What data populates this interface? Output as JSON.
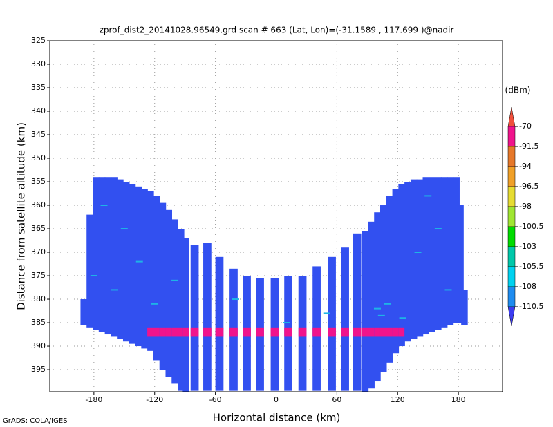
{
  "chart_data": {
    "type": "radar-profile",
    "title": "zprof_dist2_20141028.96549.grd  scan # 663  (Lat, Lon)=(-31.1589 , 117.699 )@nadir",
    "x_label": "Horizontal distance (km)",
    "y_label": "Distance from satellite altitude (km)",
    "credit": "GrADS: COLA/IGES",
    "xlim": [
      -223.6,
      223.6
    ],
    "xticks": [
      -180,
      -120,
      -60,
      0,
      60,
      120,
      180
    ],
    "ylim": [
      325,
      399.7
    ],
    "yticks": [
      325,
      330,
      335,
      340,
      345,
      350,
      355,
      360,
      365,
      370,
      375,
      380,
      385,
      390,
      395
    ],
    "y_inverted": true,
    "grid": true,
    "x": [
      -190,
      -184,
      -178,
      -172,
      -166,
      -160,
      -154,
      -148,
      -142,
      -136,
      -130,
      -124,
      -118,
      -112,
      -106,
      -100,
      -94,
      -89,
      -80.5,
      -68,
      -56,
      -42,
      -29,
      -16,
      -1.4,
      12,
      26,
      40,
      55,
      68,
      80,
      88,
      94,
      100,
      106,
      112,
      118,
      124,
      130,
      136,
      142,
      148,
      154,
      160,
      166,
      172,
      178,
      182,
      186
    ],
    "width": [
      6.5,
      6.5,
      6.5,
      6.5,
      6.5,
      6.5,
      6.5,
      6.5,
      6.5,
      6.5,
      6.5,
      6.5,
      6.5,
      6.5,
      6.5,
      6.5,
      6.5,
      6.5,
      8,
      8,
      8,
      8,
      8,
      8,
      8,
      8,
      8,
      8,
      8,
      8,
      8,
      6.5,
      6.5,
      6.5,
      6.5,
      6.5,
      6.5,
      6.5,
      6.5,
      6.5,
      6.5,
      6.5,
      6.5,
      6.5,
      6.5,
      6.5,
      6.5,
      6.5,
      6.5
    ],
    "top": [
      380,
      362,
      354,
      354,
      354,
      354,
      354.5,
      355,
      355.5,
      356,
      356.5,
      357,
      358,
      359.5,
      361,
      363,
      365,
      367,
      368.5,
      368,
      371,
      373.5,
      375,
      375.5,
      375.5,
      375,
      375,
      373,
      371,
      369,
      366,
      365.5,
      363.5,
      361.5,
      360,
      358,
      356.5,
      355.5,
      355,
      354.5,
      354.5,
      354,
      354,
      354,
      354,
      354,
      354,
      360,
      378
    ],
    "bottom": [
      385.5,
      386,
      386.5,
      387,
      387.5,
      388,
      388.5,
      389,
      389.5,
      390,
      390.5,
      391,
      393,
      395,
      396.5,
      398,
      399.5,
      399.7,
      399.5,
      399.5,
      399.5,
      399.5,
      399.5,
      399.5,
      399.5,
      399.5,
      399.5,
      399.5,
      399.5,
      399.5,
      399.5,
      399.7,
      399,
      397.5,
      395.5,
      393.5,
      391.5,
      390,
      389,
      388.5,
      388,
      387.5,
      387,
      386.5,
      386,
      385.5,
      385,
      385,
      385.5
    ],
    "field_color": "#3250f0",
    "surface_xlim": [
      -128,
      128
    ],
    "surface_top": 386,
    "surface_bottom": 388,
    "surface_color": "#f0148c",
    "streak_x": [
      -170,
      -150,
      -135,
      -160,
      -120,
      -100,
      -40,
      10,
      50,
      100,
      104,
      110,
      140,
      160,
      170,
      -180,
      150,
      125
    ],
    "streak_y": [
      360,
      365,
      372,
      378,
      381,
      376,
      380,
      385,
      383,
      382,
      383.5,
      381,
      370,
      365,
      378,
      375,
      358,
      384
    ],
    "streak_color": "#1eb4e6",
    "colorbar": {
      "unit": "(dBm)",
      "levels": [
        -70,
        -91.5,
        -94,
        -96.5,
        -98,
        -100.5,
        -103,
        -105.5,
        -108,
        -110.5
      ],
      "colors": [
        "#f0503c",
        "#f0148c",
        "#e6782a",
        "#f0a028",
        "#e6dc32",
        "#a0e632",
        "#00dc00",
        "#00c8aa",
        "#00d2f0",
        "#1e8cf0",
        "#3c3cf0"
      ]
    }
  }
}
